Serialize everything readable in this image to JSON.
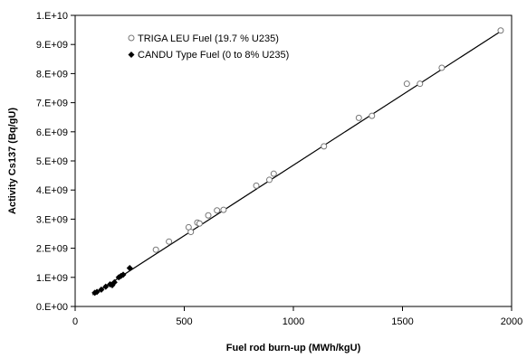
{
  "chart_data": {
    "type": "scatter",
    "title": "",
    "xlabel": "Fuel rod burn-up (MWh/kgU)",
    "ylabel": "Activity Cs137 (Bq/gU)",
    "xlim": [
      0,
      2000
    ],
    "ylim": [
      0,
      10000000000
    ],
    "x_ticks": [
      "0",
      "500",
      "1000",
      "1500",
      "2000"
    ],
    "x_tick_values": [
      0,
      500,
      1000,
      1500,
      2000
    ],
    "y_ticks": [
      "0.E+00",
      "1.E+09",
      "2.E+09",
      "3.E+09",
      "4.E+09",
      "5.E+09",
      "6.E+09",
      "7.E+09",
      "8.E+09",
      "9.E+09",
      "1.E+10"
    ],
    "y_tick_values": [
      0,
      1000000000,
      2000000000,
      3000000000,
      4000000000,
      5000000000,
      6000000000,
      7000000000,
      8000000000,
      9000000000,
      10000000000
    ],
    "grid": false,
    "legend_position": "top-left",
    "series": [
      {
        "name": "TRIGA LEU Fuel (19.7 % U235)",
        "marker": "open-circle",
        "color": "#777777",
        "points": [
          [
            370,
            1950000000
          ],
          [
            430,
            2230000000
          ],
          [
            520,
            2720000000
          ],
          [
            530,
            2560000000
          ],
          [
            560,
            2880000000
          ],
          [
            570,
            2850000000
          ],
          [
            610,
            3130000000
          ],
          [
            650,
            3300000000
          ],
          [
            680,
            3320000000
          ],
          [
            830,
            4150000000
          ],
          [
            890,
            4350000000
          ],
          [
            910,
            4560000000
          ],
          [
            1140,
            5500000000
          ],
          [
            1300,
            6480000000
          ],
          [
            1360,
            6550000000
          ],
          [
            1520,
            7650000000
          ],
          [
            1580,
            7650000000
          ],
          [
            1680,
            8200000000
          ],
          [
            1950,
            9480000000
          ]
        ]
      },
      {
        "name": "CANDU Type Fuel (0 to 8% U235)",
        "marker": "filled-diamond",
        "color": "#000000",
        "points": [
          [
            90,
            470000000
          ],
          [
            100,
            500000000
          ],
          [
            120,
            580000000
          ],
          [
            140,
            680000000
          ],
          [
            160,
            760000000
          ],
          [
            170,
            730000000
          ],
          [
            180,
            830000000
          ],
          [
            200,
            1000000000
          ],
          [
            210,
            1050000000
          ],
          [
            220,
            1090000000
          ],
          [
            250,
            1320000000
          ]
        ]
      }
    ],
    "trendline": {
      "color": "#000000",
      "from": [
        80,
        400000000
      ],
      "to": [
        1960,
        9500000000
      ]
    }
  }
}
